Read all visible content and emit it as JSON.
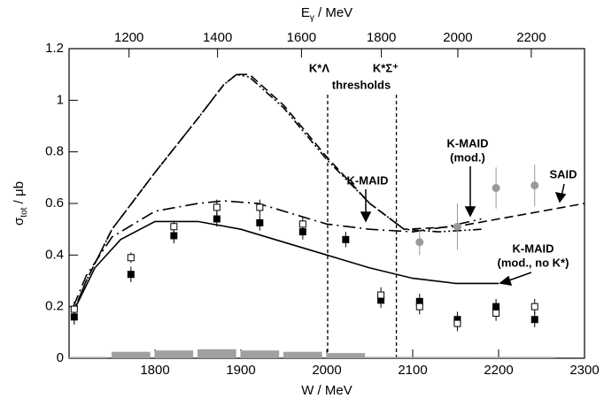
{
  "chart_data": {
    "type": "line",
    "xlabel": "W / MeV",
    "ylabel": [
      "σ",
      "tot",
      " / μb"
    ],
    "x2label": [
      "E",
      "γ",
      " / MeV"
    ],
    "xlim": [
      1700,
      2300
    ],
    "xticks": [
      1800,
      1900,
      2000,
      2100,
      2200,
      2300
    ],
    "ylim": [
      0,
      1.2
    ],
    "yticks": [
      0,
      0.2,
      0.4,
      0.6,
      0.8,
      1,
      1.2
    ],
    "x2ticks": [
      1200,
      1400,
      1600,
      1800,
      2000,
      2200
    ],
    "thresholds": [
      2001,
      2081
    ],
    "annotations": [
      "K*Λ",
      "K*Σ⁺",
      "thresholds",
      "K-MAID",
      "K-MAID",
      "(mod.)",
      "SAID",
      "K-MAID",
      "(mod., no K*)"
    ],
    "curves": [
      {
        "style": "dash-dot-dot",
        "color": "#000000",
        "x": [
          1705,
          1720,
          1750,
          1800,
          1850,
          1880,
          1895,
          1910,
          1950,
          2000,
          2050,
          2090,
          2130,
          2180
        ],
        "values": [
          0.18,
          0.3,
          0.5,
          0.72,
          0.93,
          1.06,
          1.1,
          1.09,
          0.97,
          0.77,
          0.6,
          0.5,
          0.49,
          0.5
        ]
      },
      {
        "style": "dashed",
        "color": "#000000",
        "x": [
          1705,
          1720,
          1750,
          1800,
          1850,
          1880,
          1895,
          1910,
          1950,
          2000,
          2050,
          2090,
          2150,
          2200,
          2250,
          2300
        ],
        "values": [
          0.18,
          0.3,
          0.5,
          0.72,
          0.93,
          1.06,
          1.1,
          1.1,
          0.98,
          0.78,
          0.6,
          0.5,
          0.51,
          0.54,
          0.57,
          0.6
        ]
      },
      {
        "style": "dash-dot",
        "color": "#000000",
        "x": [
          1705,
          1720,
          1750,
          1800,
          1850,
          1880,
          1920,
          1960,
          2000,
          2050,
          2100,
          2140,
          2180
        ],
        "values": [
          0.2,
          0.32,
          0.47,
          0.57,
          0.6,
          0.61,
          0.6,
          0.56,
          0.52,
          0.5,
          0.49,
          0.51,
          0.54
        ]
      },
      {
        "style": "solid",
        "color": "#000000",
        "x": [
          1705,
          1730,
          1760,
          1800,
          1850,
          1900,
          1950,
          2000,
          2050,
          2100,
          2150,
          2200
        ],
        "values": [
          0.18,
          0.35,
          0.46,
          0.53,
          0.53,
          0.5,
          0.45,
          0.4,
          0.35,
          0.31,
          0.29,
          0.29
        ]
      }
    ],
    "points": [
      {
        "marker": "filled-square",
        "color": "#000000",
        "x": [
          1706,
          1772,
          1822,
          1872,
          1922,
          1972,
          2022,
          2063,
          2108,
          2152,
          2197,
          2242
        ],
        "values": [
          0.16,
          0.325,
          0.475,
          0.54,
          0.525,
          0.49,
          0.46,
          0.225,
          0.22,
          0.15,
          0.2,
          0.15
        ],
        "errors": [
          0.03,
          0.03,
          0.03,
          0.03,
          0.03,
          0.03,
          0.03,
          0.03,
          0.03,
          0.03,
          0.03,
          0.03
        ]
      },
      {
        "marker": "open-square",
        "color": "#000000",
        "x": [
          1706,
          1772,
          1822,
          1872,
          1922,
          1972,
          2063,
          2108,
          2152,
          2197,
          2242
        ],
        "values": [
          0.19,
          0.39,
          0.51,
          0.585,
          0.585,
          0.52,
          0.245,
          0.2,
          0.135,
          0.175,
          0.2
        ],
        "errors": [
          0.03,
          0.02,
          0.02,
          0.03,
          0.03,
          0.03,
          0.03,
          0.03,
          0.03,
          0.03,
          0.03
        ]
      },
      {
        "marker": "circle",
        "color": "#999999",
        "x": [
          2108,
          2152,
          2197,
          2242
        ],
        "values": [
          0.45,
          0.51,
          0.66,
          0.67
        ],
        "errors": [
          0.05,
          0.09,
          0.08,
          0.08
        ]
      }
    ],
    "systematic": {
      "color": "#a0a0a0",
      "width": 45,
      "x": [
        1722,
        1772,
        1822,
        1872,
        1922,
        1972,
        2022,
        2063,
        2108,
        2152,
        2197,
        2242
      ],
      "values": [
        0.005,
        0.025,
        0.03,
        0.035,
        0.03,
        0.025,
        0.02,
        0.005,
        0.005,
        0.005,
        0.005,
        0.005
      ]
    }
  }
}
